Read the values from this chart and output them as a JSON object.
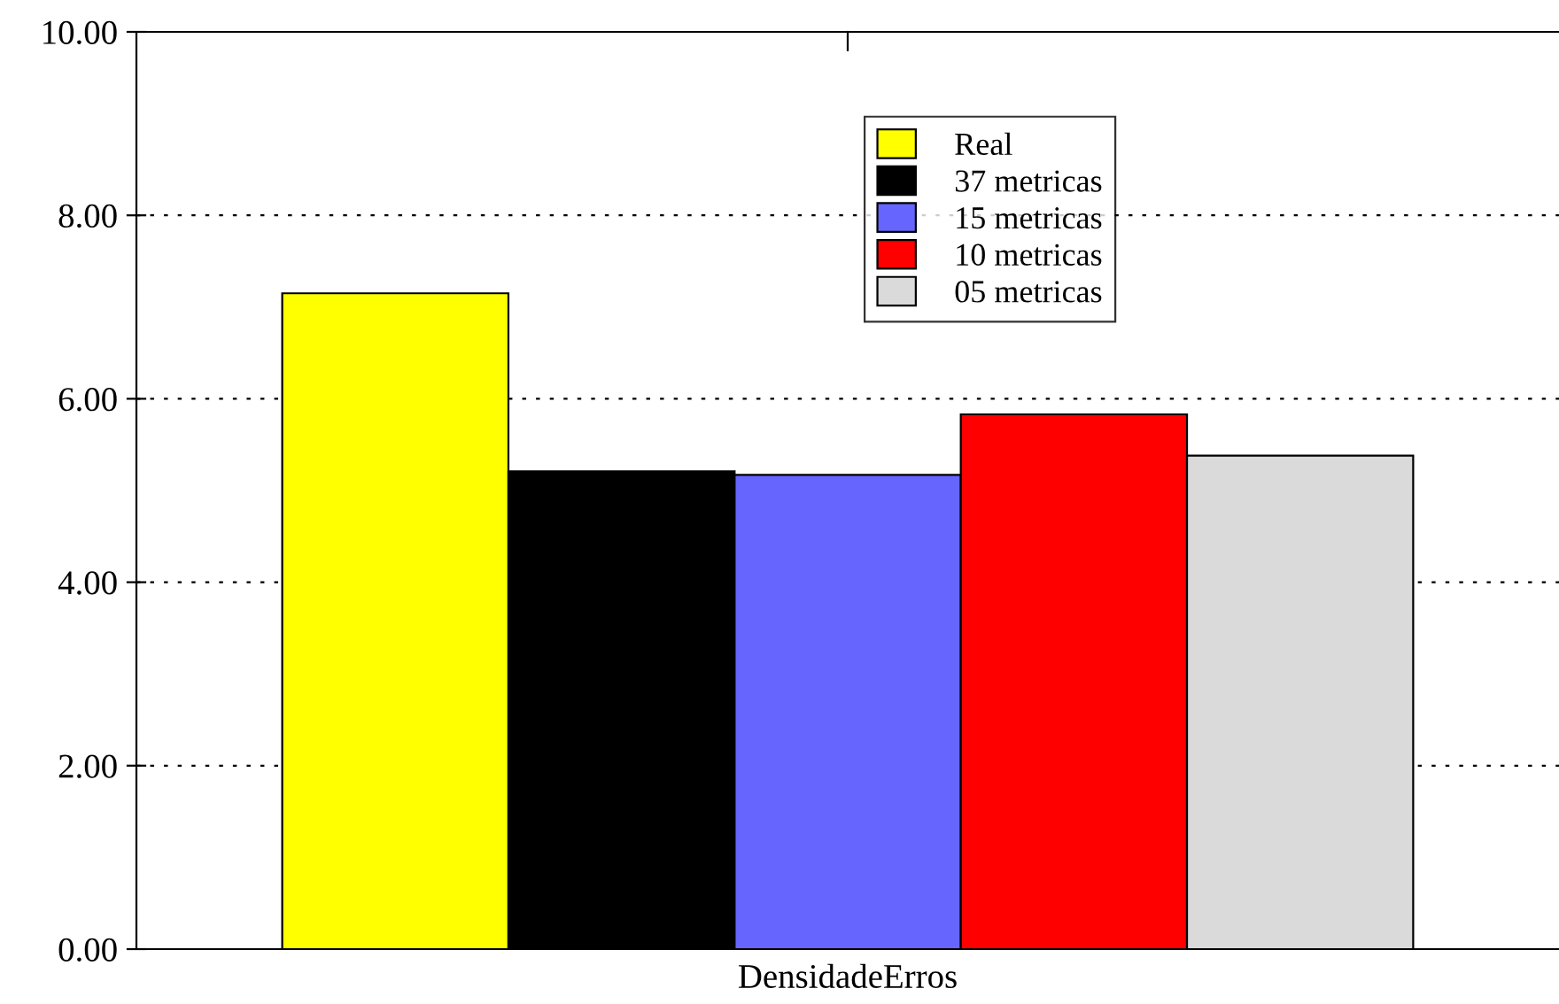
{
  "chart_data": {
    "type": "bar",
    "categories": [
      "DensidadeErros"
    ],
    "series": [
      {
        "name": "Real",
        "color": "#ffff00",
        "values": [
          7.15
        ]
      },
      {
        "name": "37 metricas",
        "color": "#000000",
        "values": [
          5.21
        ]
      },
      {
        "name": "15 metricas",
        "color": "#6666ff",
        "values": [
          5.17
        ]
      },
      {
        "name": "10 metricas",
        "color": "#ff0000",
        "values": [
          5.83
        ]
      },
      {
        "name": "05 metricas",
        "color": "#dadada",
        "values": [
          5.38
        ]
      }
    ],
    "ylim": [
      0,
      10
    ],
    "yticks": [
      {
        "value": 0,
        "label": "0.00"
      },
      {
        "value": 2,
        "label": "2.00"
      },
      {
        "value": 4,
        "label": "4.00"
      },
      {
        "value": 6,
        "label": "6.00"
      },
      {
        "value": 8,
        "label": "8.00"
      },
      {
        "value": 10,
        "label": "10.00"
      }
    ],
    "grid": "y",
    "legend": "top"
  }
}
